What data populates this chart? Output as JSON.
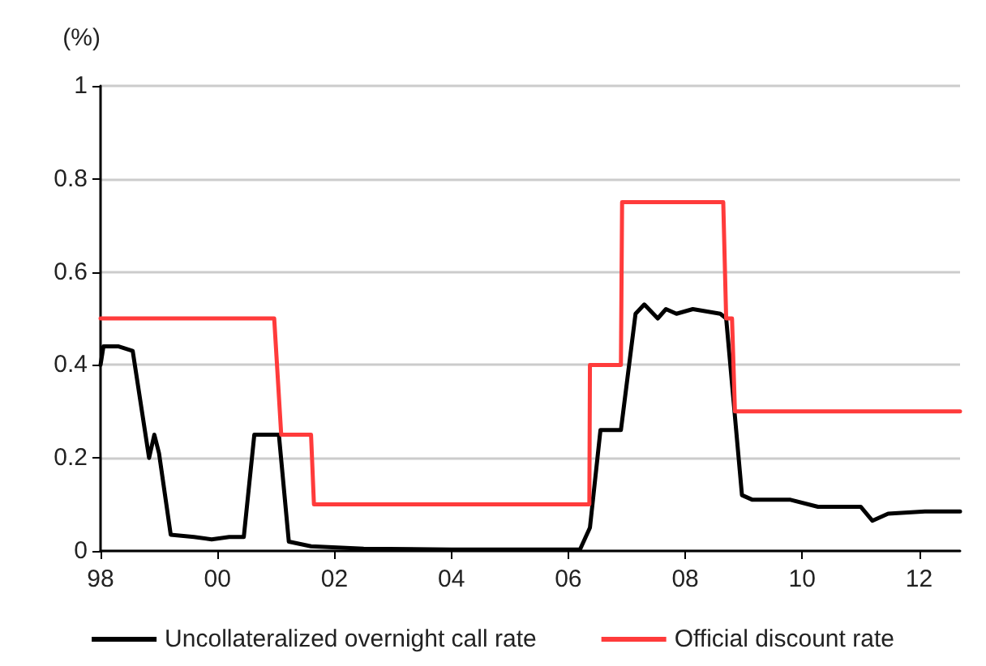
{
  "chart_data": {
    "type": "line",
    "ylabel": "(%)",
    "xlim": [
      1998,
      2012.7
    ],
    "xticks": [
      {
        "value": 1998,
        "label": "98"
      },
      {
        "value": 2000,
        "label": "00"
      },
      {
        "value": 2002,
        "label": "02"
      },
      {
        "value": 2004,
        "label": "04"
      },
      {
        "value": 2006,
        "label": "06"
      },
      {
        "value": 2008,
        "label": "08"
      },
      {
        "value": 2010,
        "label": "10"
      },
      {
        "value": 2012,
        "label": "12"
      }
    ],
    "ylim": [
      0,
      1
    ],
    "yticks": [
      0,
      0.2,
      0.4,
      0.6,
      0.8,
      1
    ],
    "grid": "y",
    "legend": "bottom",
    "marker": "none",
    "line_style": "solid",
    "series": [
      {
        "name": "Uncollateralized overnight call rate",
        "color": "#000000",
        "x": [
          1998.0,
          1998.05,
          1998.3,
          1998.55,
          1998.83,
          1998.92,
          1999.0,
          1999.2,
          1999.6,
          1999.9,
          2000.2,
          2000.45,
          2000.63,
          2000.85,
          2001.05,
          2001.22,
          2001.6,
          2002.5,
          2004.0,
          2005.5,
          2006.2,
          2006.37,
          2006.55,
          2006.9,
          2007.15,
          2007.3,
          2007.53,
          2007.67,
          2007.85,
          2008.13,
          2008.6,
          2008.7,
          2008.97,
          2009.15,
          2009.8,
          2010.27,
          2011.0,
          2011.2,
          2011.47,
          2012.1,
          2012.7
        ],
        "values": [
          0.4,
          0.44,
          0.44,
          0.43,
          0.2,
          0.25,
          0.21,
          0.035,
          0.03,
          0.025,
          0.03,
          0.03,
          0.25,
          0.25,
          0.25,
          0.02,
          0.01,
          0.005,
          0.003,
          0.003,
          0.003,
          0.05,
          0.26,
          0.26,
          0.51,
          0.53,
          0.5,
          0.52,
          0.51,
          0.52,
          0.51,
          0.5,
          0.12,
          0.11,
          0.11,
          0.095,
          0.095,
          0.065,
          0.08,
          0.085,
          0.085
        ]
      },
      {
        "name": "Official discount rate",
        "color": "#ff3b3b",
        "x": [
          1998.0,
          2000.97,
          2001.09,
          2001.6,
          2001.65,
          2006.36,
          2006.37,
          2006.9,
          2006.92,
          2008.65,
          2008.7,
          2008.8,
          2008.85,
          2012.7
        ],
        "values": [
          0.5,
          0.5,
          0.25,
          0.25,
          0.1,
          0.1,
          0.4,
          0.4,
          0.75,
          0.75,
          0.5,
          0.5,
          0.3,
          0.3
        ]
      }
    ]
  }
}
